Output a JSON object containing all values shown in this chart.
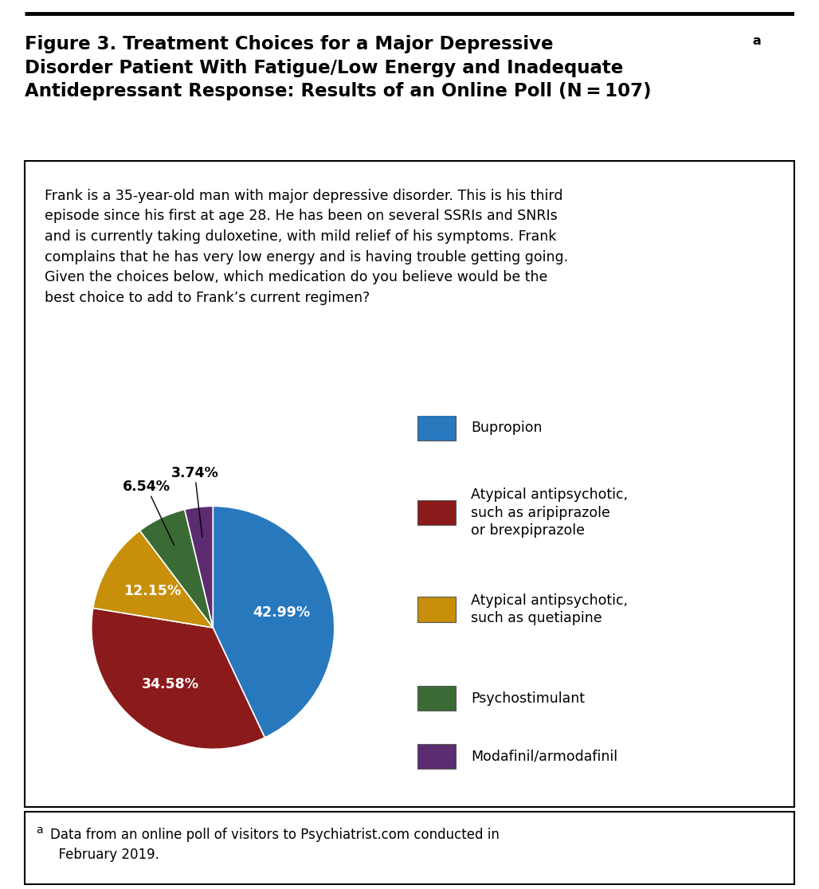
{
  "title_text": "Figure 3. Treatment Choices for a Major Depressive\nDisorder Patient With Fatigue/Low Energy and Inadequate\nAntidepressant Response: Results of an Online Poll (N = 107)",
  "title_superscript": "a",
  "case_text": "Frank is a 35-year-old man with major depressive disorder. This is his third\nepisode since his first at age 28. He has been on several SSRIs and SNRIs\nand is currently taking duloxetine, with mild relief of his symptoms. Frank\ncomplains that he has very low energy and is having trouble getting going.\nGiven the choices below, which medication do you believe would be the\nbest choice to add to Frank’s current regimen?",
  "footnote_super": "a",
  "footnote_text": "Data from an online poll of visitors to Psychiatrist.com conducted in\n  February 2019.",
  "slices": [
    42.99,
    34.58,
    12.15,
    6.54,
    3.74
  ],
  "colors": [
    "#2878BE",
    "#8B1A1A",
    "#C8900A",
    "#3A6B35",
    "#5B2C6F"
  ],
  "legend_labels": [
    "Bupropion",
    "Atypical antipsychotic,\nsuch as aripiprazole\nor brexpiprazole",
    "Atypical antipsychotic,\nsuch as quetiapine",
    "Psychostimulant",
    "Modafinil/armodafinil"
  ],
  "background_color": "#ffffff",
  "title_fontsize": 16.5,
  "case_fontsize": 12.5,
  "footnote_fontsize": 12,
  "label_fontsize": 12.5,
  "legend_fontsize": 12.5
}
